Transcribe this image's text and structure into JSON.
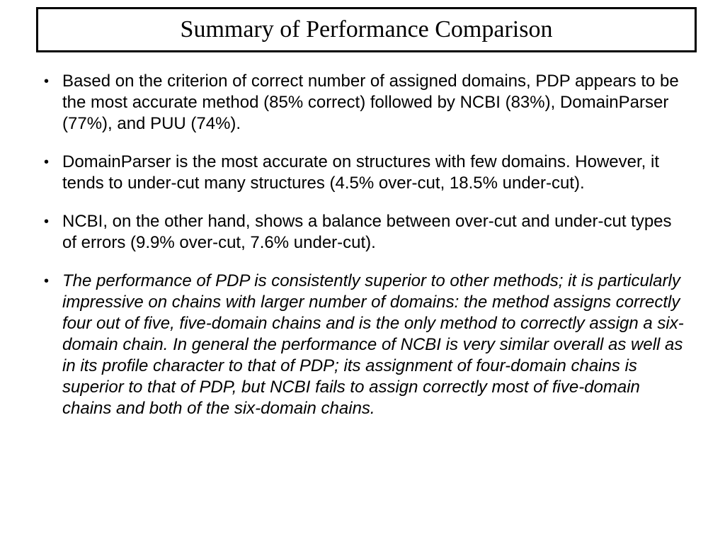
{
  "slide": {
    "title": "Summary of Performance Comparison",
    "bullet_char": "•",
    "bullets": [
      {
        "style": "normal",
        "text": "Based on the criterion of correct number of assigned domains, PDP appears to be the most accurate method (85% correct) followed by NCBI (83%), DomainParser (77%), and PUU (74%)."
      },
      {
        "style": "normal",
        "text": "DomainParser is the most accurate on structures with few domains. However, it tends to under-cut many structures (4.5% over-cut, 18.5% under-cut)."
      },
      {
        "style": "normal",
        "text": "NCBI, on the other hand, shows a balance between over-cut and under-cut types of errors (9.9% over-cut, 7.6% under-cut)."
      },
      {
        "style": "italic",
        "text": "The performance of PDP is consistently superior to other methods; it is particularly impressive on chains with larger number of domains: the method assigns correctly four out of five, five-domain chains and is the only method to correctly assign a six-domain chain. In general the performance of NCBI is very similar overall as well as in its profile character to that of PDP; its assignment of four-domain chains is superior to that of PDP, but NCBI fails to assign correctly most of five-domain chains and both of the six-domain chains."
      }
    ],
    "colors": {
      "background": "#ffffff",
      "text": "#000000",
      "title_border": "#000000"
    }
  }
}
